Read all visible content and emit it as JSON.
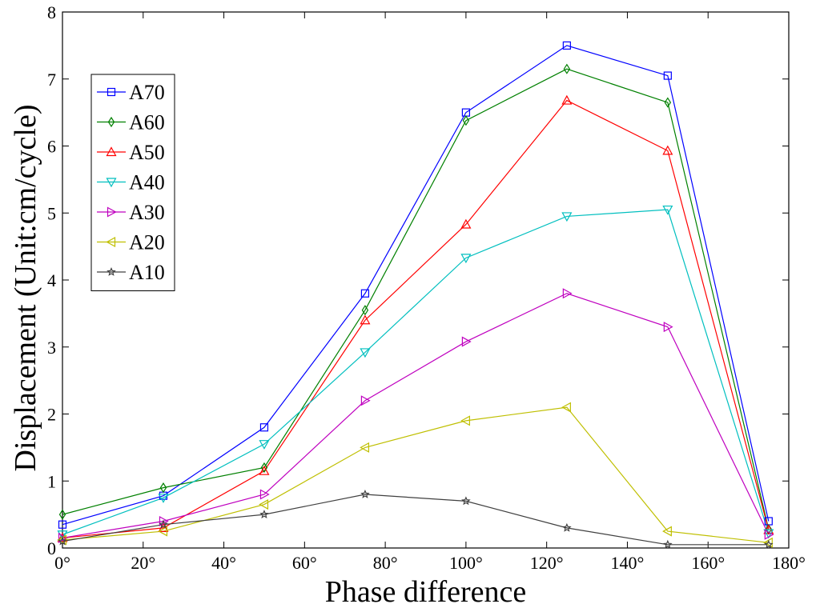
{
  "chart_data": {
    "type": "line",
    "title": "",
    "xlabel": "Phase difference",
    "ylabel": "Displacement (Unit:cm/cycle)",
    "xlim": [
      0,
      180
    ],
    "ylim": [
      0,
      8
    ],
    "x_ticks": [
      0,
      20,
      40,
      60,
      80,
      100,
      120,
      140,
      160,
      180
    ],
    "x_tick_labels": [
      "0°",
      "20°",
      "40°",
      "60°",
      "80°",
      "100°",
      "120°",
      "140°",
      "160°",
      "180°"
    ],
    "y_ticks": [
      0,
      1,
      2,
      3,
      4,
      5,
      6,
      7,
      8
    ],
    "y_tick_labels": [
      "0",
      "1",
      "2",
      "3",
      "4",
      "5",
      "6",
      "7",
      "8"
    ],
    "grid": false,
    "legend_position": "top-left",
    "x": [
      0,
      25,
      50,
      75,
      100,
      125,
      150,
      175
    ],
    "series": [
      {
        "name": "A70",
        "color": "#0000ff",
        "marker": "square",
        "values": [
          0.35,
          0.78,
          1.8,
          3.8,
          6.5,
          7.5,
          7.05,
          0.4
        ]
      },
      {
        "name": "A60",
        "color": "#008000",
        "marker": "diamond",
        "values": [
          0.5,
          0.9,
          1.2,
          3.55,
          6.38,
          7.15,
          6.65,
          0.28
        ]
      },
      {
        "name": "A50",
        "color": "#ff0000",
        "marker": "triangle-up",
        "values": [
          0.15,
          0.3,
          1.15,
          3.4,
          4.83,
          6.68,
          5.93,
          0.27
        ]
      },
      {
        "name": "A40",
        "color": "#00bfbf",
        "marker": "triangle-down",
        "values": [
          0.2,
          0.75,
          1.55,
          2.92,
          4.33,
          4.95,
          5.05,
          0.22
        ]
      },
      {
        "name": "A30",
        "color": "#bf00bf",
        "marker": "triangle-right",
        "values": [
          0.15,
          0.4,
          0.8,
          2.2,
          3.08,
          3.8,
          3.3,
          0.2
        ]
      },
      {
        "name": "A20",
        "color": "#bfbf00",
        "marker": "triangle-left",
        "values": [
          0.12,
          0.25,
          0.65,
          1.5,
          1.9,
          2.1,
          0.25,
          0.08
        ]
      },
      {
        "name": "A10",
        "color": "#404040",
        "marker": "star",
        "values": [
          0.1,
          0.35,
          0.5,
          0.8,
          0.7,
          0.3,
          0.05,
          0.05
        ]
      }
    ]
  }
}
